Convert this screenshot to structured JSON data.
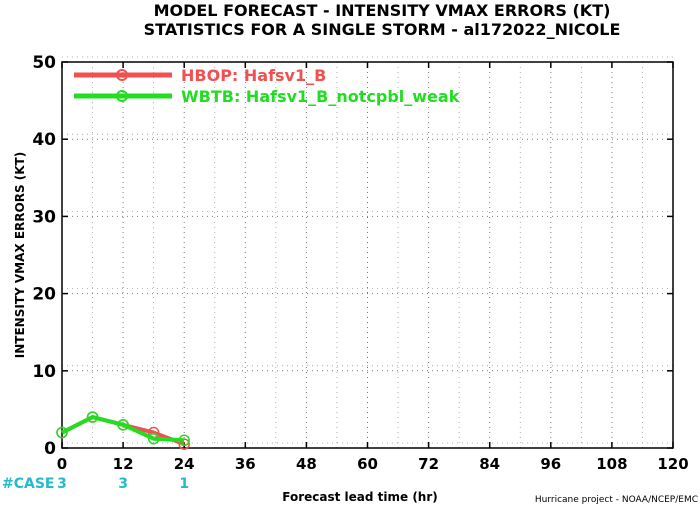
{
  "chart_data": {
    "type": "line",
    "title": "MODEL FORECAST - INTENSITY VMAX ERRORS (KT)",
    "subtitle": "STATISTICS FOR A SINGLE STORM - al172022_NICOLE",
    "xlabel": "Forecast lead time (hr)",
    "ylabel": "INTENSITY VMAX ERRORS (KT)",
    "xlim": [
      0,
      120
    ],
    "ylim": [
      0,
      50
    ],
    "x_ticks": [
      0,
      12,
      24,
      36,
      48,
      60,
      72,
      84,
      96,
      108,
      120
    ],
    "y_ticks": [
      0,
      10,
      20,
      30,
      40,
      50
    ],
    "grid": true,
    "legend_position": "top-left",
    "series": [
      {
        "name": "HBOP: Hafsv1_B",
        "color": "#f05050",
        "x": [
          0,
          6,
          12,
          18,
          24
        ],
        "y": [
          2,
          4,
          3,
          2,
          0.5
        ]
      },
      {
        "name": "WBTB: Hafsv1_B_notcpbl_weak",
        "color": "#22dd22",
        "x": [
          0,
          6,
          12,
          18,
          24
        ],
        "y": [
          2,
          4,
          3,
          1.2,
          1
        ]
      }
    ],
    "case_counts": {
      "label": "#CASE",
      "color": "#22bbcc",
      "entries": [
        {
          "x": 0,
          "count": "3"
        },
        {
          "x": 12,
          "count": "3"
        },
        {
          "x": 24,
          "count": "1"
        }
      ]
    },
    "credit": "Hurricane project - NOAA/NCEP/EMC"
  }
}
